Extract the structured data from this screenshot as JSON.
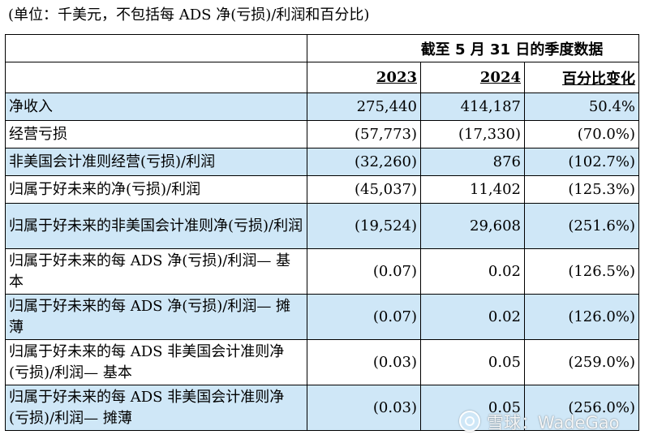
{
  "caption": "(单位：千美元，不包括每 ADS 净(亏损)/利润和百分比)",
  "header": {
    "period": "截至 5 月 31 日的季度数据",
    "year_1": "2023",
    "year_2": "2024",
    "change": "百分比变化"
  },
  "rows": [
    {
      "label": "净收入",
      "y2023": "275,440",
      "y2024": "414,187",
      "change": "50.4%"
    },
    {
      "label": "经营亏损",
      "y2023": "(57,773)",
      "y2024": "(17,330)",
      "change": "(70.0%)"
    },
    {
      "label": "非美国会计准则经营(亏损)/利润",
      "y2023": "(32,260)",
      "y2024": "876",
      "change": "(102.7%)"
    },
    {
      "label": "归属于好未来的净(亏损)/利润",
      "y2023": "(45,037)",
      "y2024": "11,402",
      "change": "(125.3%)"
    },
    {
      "label": "归属于好未来的非美国会计准则净(亏损)/利润",
      "y2023": "(19,524)",
      "y2024": "29,608",
      "change": "(251.6%)"
    },
    {
      "label": "归属于好未来的每 ADS 净(亏损)/利润— 基本",
      "y2023": "(0.07)",
      "y2024": "0.02",
      "change": "(126.5%)"
    },
    {
      "label": "归属于好未来的每 ADS 净(亏损)/利润— 摊薄",
      "y2023": "(0.07)",
      "y2024": "0.02",
      "change": "(126.0%)"
    },
    {
      "label": "归属于好未来的每 ADS 非美国会计准则净(亏损)/利润— 基本",
      "y2023": "(0.03)",
      "y2024": "0.05",
      "change": "(259.0%)"
    },
    {
      "label": "归属于好未来的每 ADS 非美国会计准则净(亏损)/利润— 摊薄",
      "y2023": "(0.03)",
      "y2024": "0.05",
      "change": "(256.0%)"
    }
  ],
  "watermark": "雪球：WadeGao",
  "colors": {
    "row_shade": "#cfe7f7",
    "border": "#000000"
  }
}
